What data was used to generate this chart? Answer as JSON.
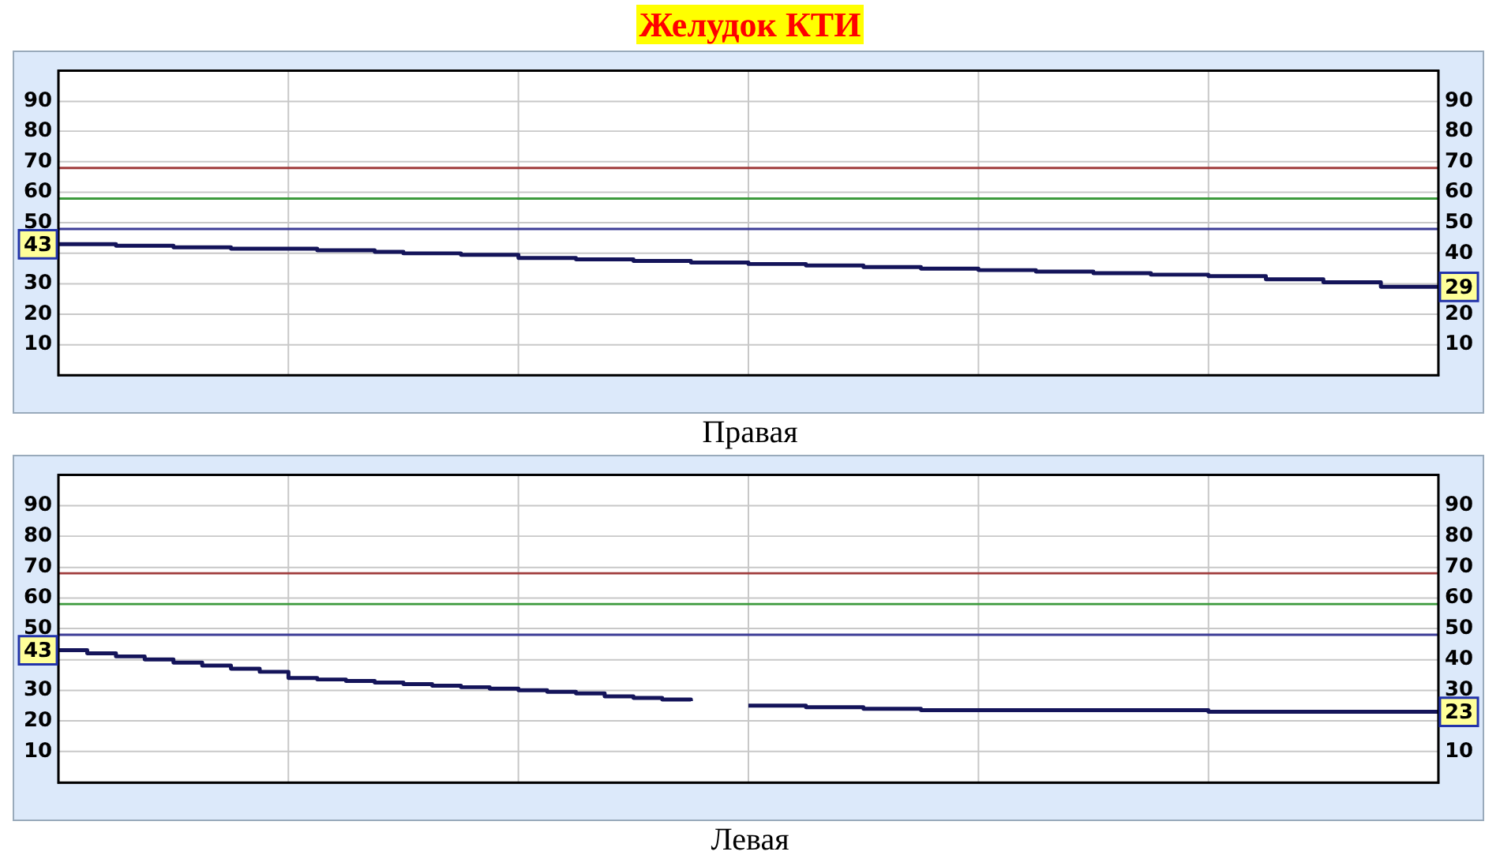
{
  "chart_data": [
    {
      "type": "step",
      "title": "Желудок КТИ",
      "xlabel": "Правая",
      "categories": [
        null,
        null,
        null,
        null,
        null,
        null,
        null,
        null,
        null,
        null,
        null,
        null,
        null,
        null,
        null,
        null,
        null,
        null,
        null,
        null,
        null,
        null,
        null,
        null,
        null,
        null,
        null,
        null,
        null,
        null,
        null,
        null,
        null,
        null,
        null,
        null,
        null,
        null,
        null,
        null,
        null,
        null,
        null,
        null,
        null,
        null,
        null,
        null,
        null
      ],
      "ylim": [
        0,
        100
      ],
      "yticks": [
        10,
        20,
        30,
        {
          "value": 40,
          "label": null
        },
        50,
        60,
        70,
        80,
        90
      ],
      "y2lim": [
        0,
        100
      ],
      "y2ticks": [
        10,
        20,
        40,
        50,
        60,
        70,
        80,
        90
      ],
      "grid": true,
      "ref_lines": [
        {
          "axis": "y",
          "value": 68,
          "color": "#a03c3c"
        },
        {
          "axis": "y",
          "value": 58,
          "color": "#3c9a3c"
        },
        {
          "axis": "y",
          "value": 48,
          "color": "#3c3c96"
        }
      ],
      "series": [
        {
          "color": "#14145a",
          "values": [
            43,
            43,
            42.5,
            42.5,
            42,
            42,
            41.5,
            41.5,
            41.5,
            41,
            41,
            40.5,
            40,
            40,
            39.5,
            39.5,
            38.5,
            38.5,
            38,
            38,
            37.5,
            37.5,
            37,
            37,
            36.5,
            36.5,
            36,
            36,
            35.5,
            35.5,
            35,
            35,
            34.5,
            34.5,
            34,
            34,
            33.5,
            33.5,
            33,
            33,
            32.5,
            32.5,
            31.5,
            31.5,
            30.5,
            30.5,
            29,
            29,
            29
          ],
          "value_labels": [
            "43",
            null,
            null,
            null,
            null,
            null,
            null,
            null,
            null,
            null,
            null,
            null,
            null,
            null,
            null,
            null,
            null,
            null,
            null,
            null,
            null,
            null,
            null,
            null,
            null,
            null,
            null,
            null,
            null,
            null,
            null,
            null,
            null,
            null,
            null,
            null,
            null,
            null,
            null,
            null,
            null,
            null,
            null,
            null,
            null,
            null,
            null,
            null,
            "29"
          ]
        }
      ]
    },
    {
      "type": "step",
      "xlabel": "Левая",
      "categories": [
        null,
        null,
        null,
        null,
        null,
        null,
        null,
        null,
        null,
        null,
        null,
        null,
        null,
        null,
        null,
        null,
        null,
        null,
        null,
        null,
        null,
        null,
        null,
        null,
        null,
        null,
        null,
        null,
        null,
        null,
        null,
        null,
        null,
        null,
        null,
        null,
        null,
        null,
        null,
        null,
        null,
        null,
        null,
        null,
        null,
        null,
        null,
        null,
        null
      ],
      "ylim": [
        0,
        100
      ],
      "yticks": [
        10,
        20,
        30,
        {
          "value": 40,
          "label": null
        },
        50,
        60,
        70,
        80,
        90
      ],
      "y2lim": [
        0,
        100
      ],
      "y2ticks": [
        10,
        30,
        40,
        50,
        60,
        70,
        80,
        90
      ],
      "grid": true,
      "ref_lines": [
        {
          "axis": "y",
          "value": 68,
          "color": "#a03c3c"
        },
        {
          "axis": "y",
          "value": 58,
          "color": "#3c9a3c"
        },
        {
          "axis": "y",
          "value": 48,
          "color": "#3c3c96"
        }
      ],
      "series": [
        {
          "color": "#14145a",
          "values": [
            43,
            42,
            41,
            40,
            39,
            38,
            37,
            36,
            34,
            33.5,
            33,
            32.5,
            32,
            31.5,
            31,
            30.5,
            30,
            29.5,
            29,
            28,
            27.5,
            27,
            26.5,
            null,
            25,
            25,
            24.5,
            24.5,
            24,
            24,
            23.5,
            23.5,
            23.5,
            23.5,
            23.5,
            23.5,
            23.5,
            23.5,
            23.5,
            23.5,
            23,
            23,
            23,
            23,
            23,
            23,
            23,
            23,
            23
          ],
          "value_labels": [
            "43",
            null,
            null,
            null,
            null,
            null,
            null,
            null,
            null,
            null,
            null,
            null,
            null,
            null,
            null,
            null,
            null,
            null,
            null,
            null,
            null,
            null,
            null,
            null,
            null,
            null,
            null,
            null,
            null,
            null,
            null,
            null,
            null,
            null,
            null,
            null,
            null,
            null,
            null,
            null,
            null,
            null,
            null,
            null,
            null,
            null,
            null,
            null,
            "23"
          ]
        }
      ]
    }
  ]
}
